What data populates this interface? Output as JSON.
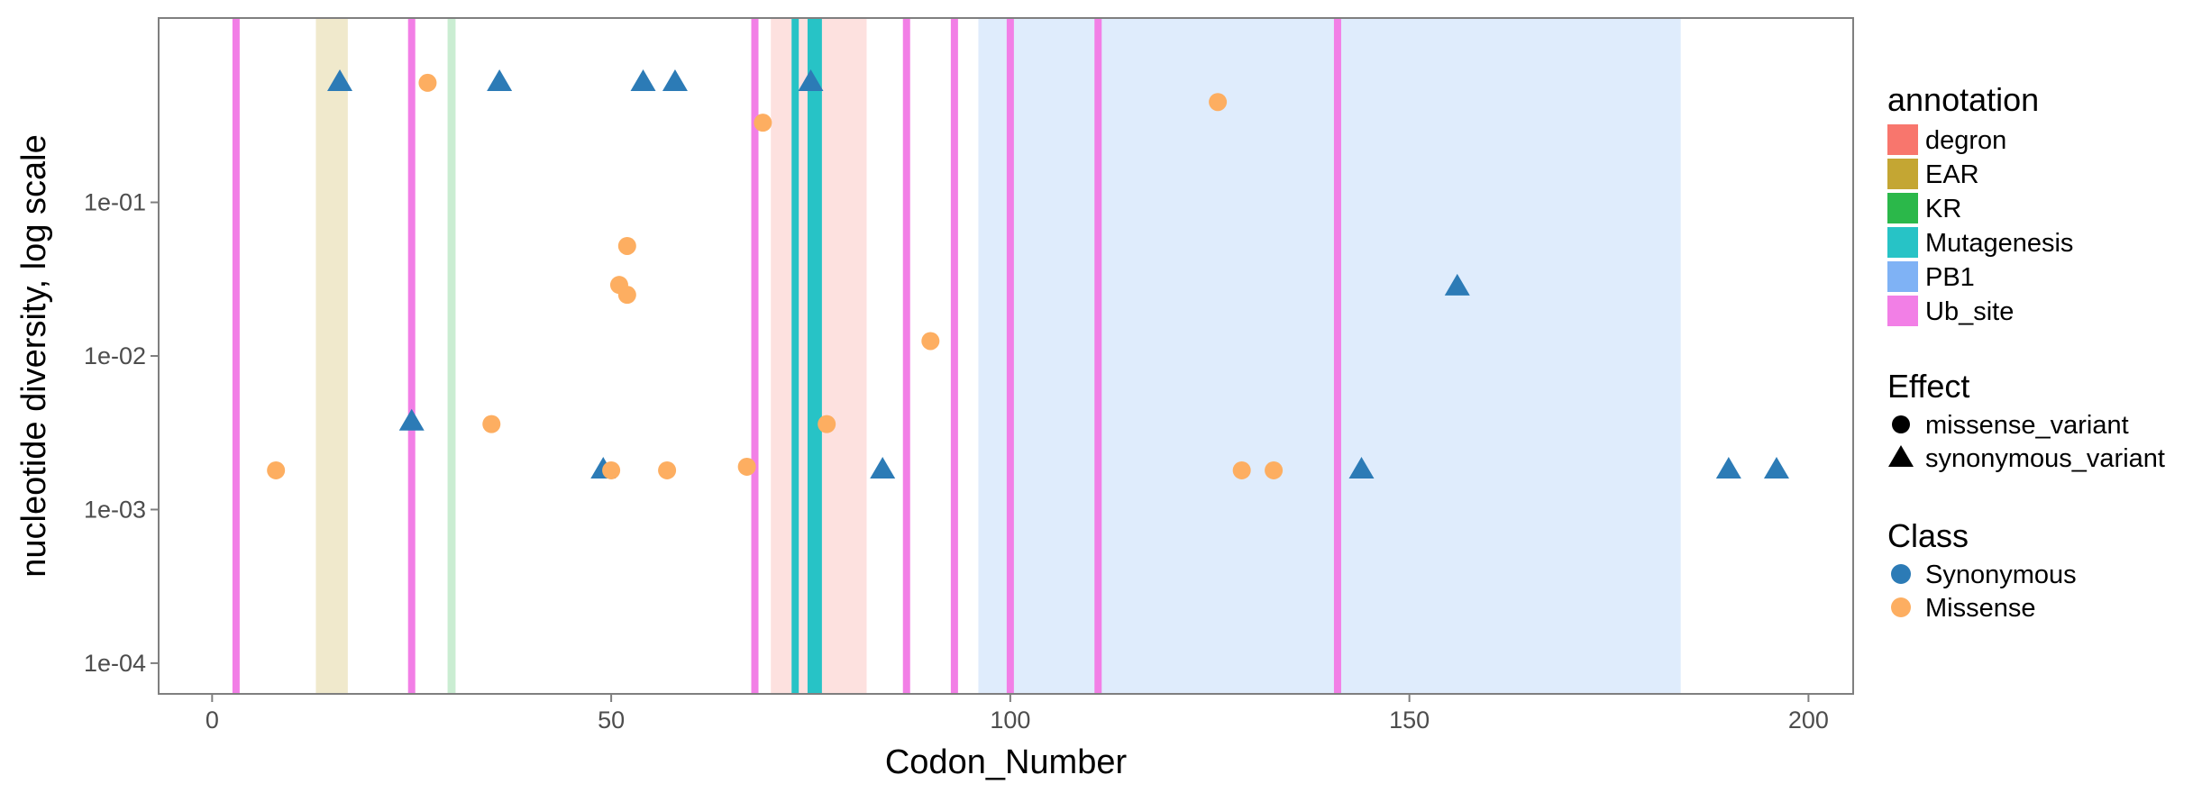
{
  "chart_data": {
    "type": "scatter",
    "title": "",
    "xlabel": "Codon_Number",
    "ylabel": "nucleotide diversity, log scale",
    "xlim": [
      -6.7,
      205.6
    ],
    "ylim_log10": [
      -4.2,
      0.2
    ],
    "y_scale": "log10",
    "x_ticks": [
      {
        "value": 0,
        "label": "0"
      },
      {
        "value": 50,
        "label": "50"
      },
      {
        "value": 100,
        "label": "100"
      },
      {
        "value": 150,
        "label": "150"
      },
      {
        "value": 200,
        "label": "200"
      }
    ],
    "y_ticks": [
      {
        "value": 0.1,
        "label": "1e-01"
      },
      {
        "value": 0.01,
        "label": "1e-02"
      },
      {
        "value": 0.001,
        "label": "1e-03"
      },
      {
        "value": 0.0001,
        "label": "1e-04"
      }
    ],
    "grid": false,
    "legend_placement": "right",
    "annotation_colors": {
      "degron": "#f8766d",
      "EAR": "#c4a633",
      "KR": "#2bb84a",
      "Mutagenesis": "#27c3c6",
      "PB1": "#7fb2f5",
      "Ub_site": "#f27fe6"
    },
    "annotation_regions": [
      {
        "annotation": "EAR",
        "x_start": 13,
        "x_end": 17,
        "alpha": 0.25
      },
      {
        "annotation": "KR",
        "x_start": 29.5,
        "x_end": 30.5,
        "alpha": 0.25
      },
      {
        "annotation": "degron",
        "x_start": 70,
        "x_end": 82,
        "alpha": 0.22
      },
      {
        "annotation": "Mutagenesis",
        "x_start": 72.6,
        "x_end": 73.5,
        "alpha": 1.0
      },
      {
        "annotation": "Mutagenesis",
        "x_start": 74.6,
        "x_end": 76.4,
        "alpha": 1.0
      },
      {
        "annotation": "PB1",
        "x_start": 96,
        "x_end": 184,
        "alpha": 0.25
      }
    ],
    "ub_sites": [
      3,
      25,
      68,
      87,
      93,
      100,
      111,
      141
    ],
    "series": [
      {
        "effect": "synonymous_variant",
        "class": "Synonymous",
        "color": "#2c7bb6",
        "points": [
          {
            "x": 16,
            "y": 0.6
          },
          {
            "x": 25,
            "y": 0.0037
          },
          {
            "x": 36,
            "y": 0.6
          },
          {
            "x": 49,
            "y": 0.0018
          },
          {
            "x": 54,
            "y": 0.6
          },
          {
            "x": 58,
            "y": 0.6
          },
          {
            "x": 75,
            "y": 0.6
          },
          {
            "x": 84,
            "y": 0.0018
          },
          {
            "x": 144,
            "y": 0.0018
          },
          {
            "x": 156,
            "y": 0.028
          },
          {
            "x": 190,
            "y": 0.0018
          },
          {
            "x": 196,
            "y": 0.0018
          }
        ]
      },
      {
        "effect": "missense_variant",
        "class": "Missense",
        "color": "#fdae61",
        "points": [
          {
            "x": 8,
            "y": 0.0018
          },
          {
            "x": 27,
            "y": 0.6
          },
          {
            "x": 35,
            "y": 0.0036
          },
          {
            "x": 50,
            "y": 0.0018
          },
          {
            "x": 51,
            "y": 0.029
          },
          {
            "x": 52,
            "y": 0.025
          },
          {
            "x": 52,
            "y": 0.052
          },
          {
            "x": 57,
            "y": 0.0018
          },
          {
            "x": 67,
            "y": 0.0019
          },
          {
            "x": 69,
            "y": 0.33
          },
          {
            "x": 77,
            "y": 0.0036
          },
          {
            "x": 90,
            "y": 0.0125
          },
          {
            "x": 126,
            "y": 0.45
          },
          {
            "x": 129,
            "y": 0.0018
          },
          {
            "x": 133,
            "y": 0.0018
          }
        ]
      }
    ]
  },
  "legend": {
    "annotation": {
      "title": "annotation",
      "items": [
        {
          "label": "degron",
          "color": "#f8766d"
        },
        {
          "label": "EAR",
          "color": "#c4a633"
        },
        {
          "label": "KR",
          "color": "#2bb84a"
        },
        {
          "label": "Mutagenesis",
          "color": "#27c3c6"
        },
        {
          "label": "PB1",
          "color": "#7fb2f5"
        },
        {
          "label": "Ub_site",
          "color": "#f27fe6"
        }
      ]
    },
    "effect": {
      "title": "Effect",
      "items": [
        {
          "label": "missense_variant",
          "shape": "circle"
        },
        {
          "label": "synonymous_variant",
          "shape": "triangle"
        }
      ]
    },
    "class": {
      "title": "Class",
      "items": [
        {
          "label": "Synonymous",
          "color": "#2c7bb6"
        },
        {
          "label": "Missense",
          "color": "#fdae61"
        }
      ]
    }
  }
}
